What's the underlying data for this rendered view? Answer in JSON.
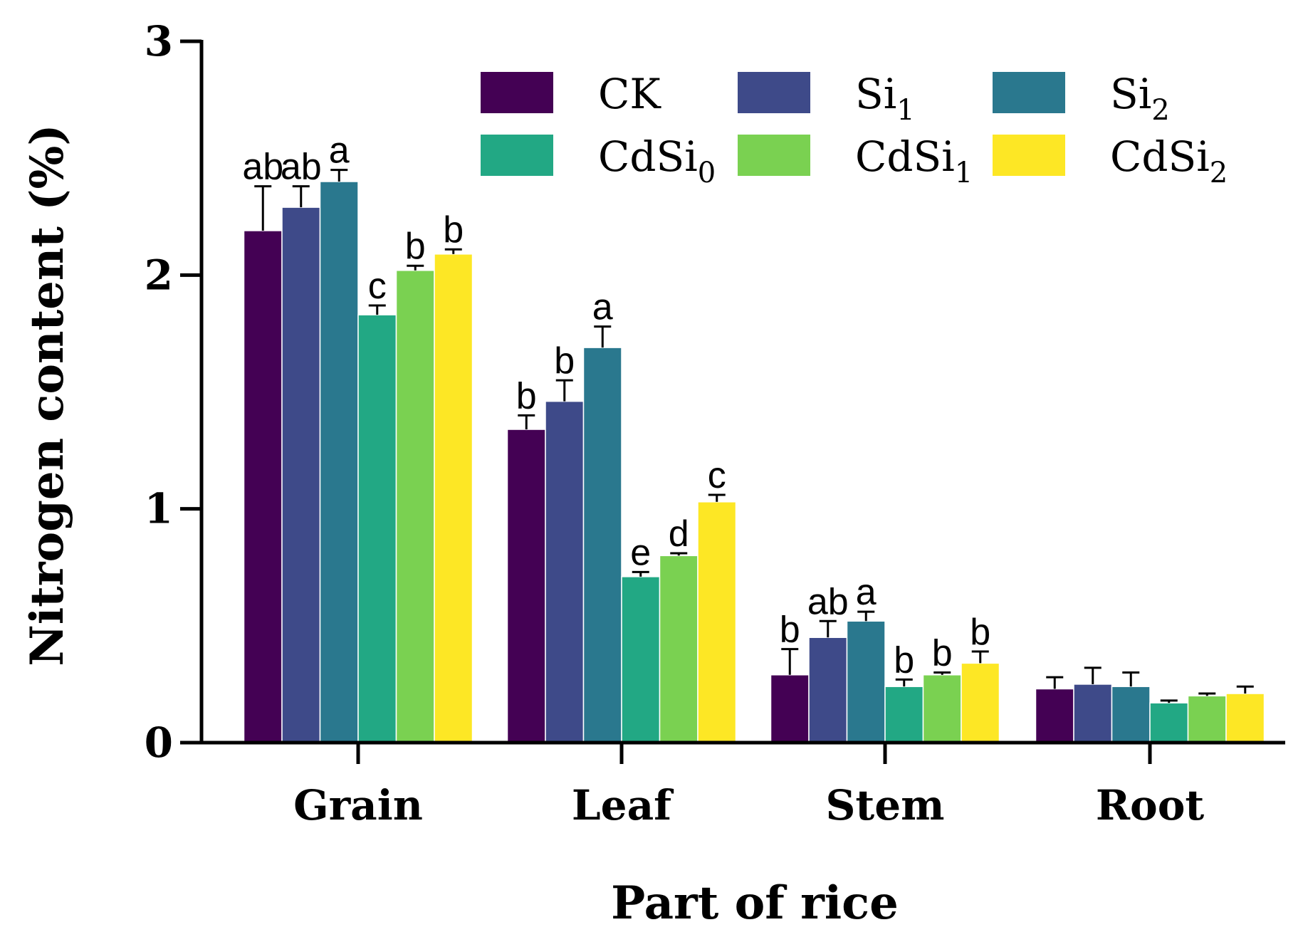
{
  "chart_data": {
    "type": "bar",
    "xlabel": "Part of rice",
    "ylabel": "Nitrogen content (%)",
    "ylim": [
      0,
      3
    ],
    "yticks": [
      "0",
      "1",
      "2",
      "3"
    ],
    "categories": [
      "Grain",
      "Leaf",
      "Stem",
      "Root"
    ],
    "legend_position": "top-right",
    "series": [
      {
        "name": "CK",
        "base": "CK",
        "sub": "",
        "color": "#440154",
        "values": [
          2.19,
          1.34,
          0.29,
          0.23
        ],
        "errors": [
          0.19,
          0.06,
          0.11,
          0.05
        ],
        "labels": [
          "ab",
          "b",
          "b",
          ""
        ]
      },
      {
        "name": "Si1",
        "base": "Si",
        "sub": "1",
        "color": "#3e4a89",
        "values": [
          2.29,
          1.46,
          0.45,
          0.25
        ],
        "errors": [
          0.09,
          0.09,
          0.07,
          0.07
        ],
        "labels": [
          "ab",
          "b",
          "ab",
          ""
        ]
      },
      {
        "name": "Si2",
        "base": "Si",
        "sub": "2",
        "color": "#2a788e",
        "values": [
          2.4,
          1.69,
          0.52,
          0.24
        ],
        "errors": [
          0.05,
          0.09,
          0.04,
          0.06
        ],
        "labels": [
          "a",
          "a",
          "a",
          ""
        ]
      },
      {
        "name": "CdSi0",
        "base": "CdSi",
        "sub": "0",
        "color": "#22a884",
        "values": [
          1.83,
          0.71,
          0.24,
          0.17
        ],
        "errors": [
          0.04,
          0.02,
          0.03,
          0.01
        ],
        "labels": [
          "c",
          "e",
          "b",
          ""
        ]
      },
      {
        "name": "CdSi1",
        "base": "CdSi",
        "sub": "1",
        "color": "#7ad151",
        "values": [
          2.02,
          0.8,
          0.29,
          0.2
        ],
        "errors": [
          0.02,
          0.01,
          0.01,
          0.01
        ],
        "labels": [
          "b",
          "d",
          "b",
          ""
        ]
      },
      {
        "name": "CdSi2",
        "base": "CdSi",
        "sub": "2",
        "color": "#fde725",
        "values": [
          2.09,
          1.03,
          0.34,
          0.21
        ],
        "errors": [
          0.02,
          0.03,
          0.05,
          0.03
        ],
        "labels": [
          "b",
          "c",
          "b",
          ""
        ]
      }
    ]
  }
}
